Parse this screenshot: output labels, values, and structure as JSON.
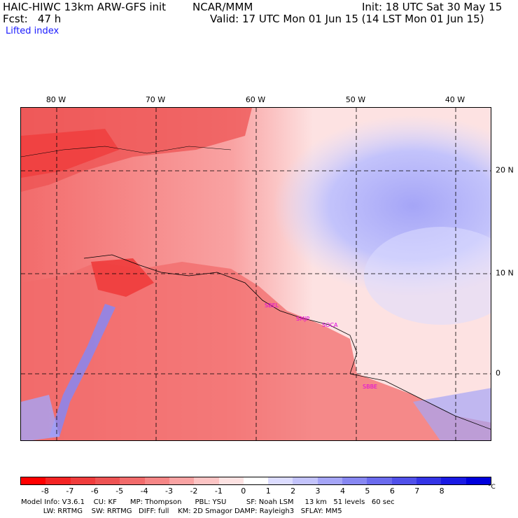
{
  "header": {
    "model": "HAIC-HIWC 13km ARW-GFS init",
    "org": "NCAR/MMM",
    "init": "Init: 18 UTC Sat 30 May 15",
    "fcst": "Fcst:   47 h",
    "valid": "Valid: 17 UTC Mon 01 Jun 15 (14 LST Mon 01 Jun 15)",
    "field": "Lifted index"
  },
  "map": {
    "lon_labels": [
      "80 W",
      "70 W",
      "60 W",
      "50 W",
      "40 W"
    ],
    "lat_labels": [
      "20 N",
      "10 N",
      "0"
    ],
    "stations": [
      "SBEL",
      "SMJP",
      "SOCA",
      "SBBE"
    ]
  },
  "colorbar": {
    "colors": [
      "#ff0000",
      "#f42424",
      "#f03c3c",
      "#ee5353",
      "#f26b6b",
      "#f68686",
      "#f9a3a3",
      "#fcc4c4",
      "#fde2e2",
      "#ffffff",
      "#dcdcff",
      "#c3c3fb",
      "#a5a5f7",
      "#8787f2",
      "#6b6bee",
      "#5050ea",
      "#3434e6",
      "#1a1ae4",
      "#0000dc"
    ],
    "labels": [
      "-8",
      "-7",
      "-6",
      "-5",
      "-4",
      "-3",
      "-2",
      "-1",
      "0",
      "1",
      "2",
      "3",
      "4",
      "5",
      "6",
      "7",
      "8"
    ],
    "unit": "°C"
  },
  "footer": {
    "line1": "Model Info: V3.6.1    CU: KF      MP: Thompson      PBL: YSU         SF: Noah LSM     13 km   51 levels   60 sec",
    "line2": "          LW: RRTMG    SW: RRTMG   DIFF: full    KM: 2D Smagor DAMP: Rayleigh3   SFLAY: MM5"
  }
}
